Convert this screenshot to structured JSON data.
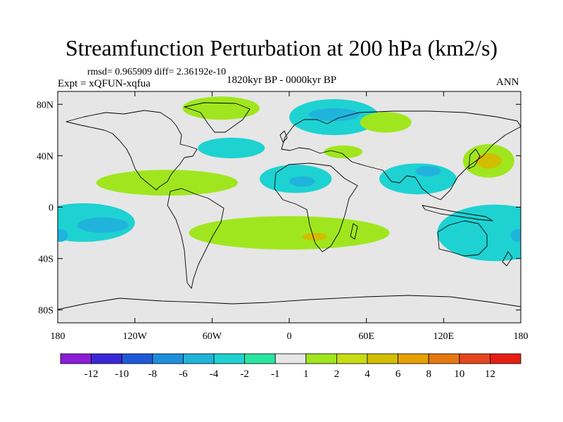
{
  "chart_data": {
    "type": "heatmap",
    "title": "Streamfunction Perturbation at 200 hPa (km2/s)",
    "stats_text": "rmsd= 0.965909 diff= 2.36192e-10",
    "subtitle_left": "Expt = xQFUN-xqfua",
    "subtitle_center": "1820kyr BP - 0000kyr BP",
    "subtitle_right": "ANN",
    "x_axis": {
      "range": [
        -180,
        180
      ],
      "ticks": [
        {
          "value": -180,
          "label": "180"
        },
        {
          "value": -120,
          "label": "120W"
        },
        {
          "value": -60,
          "label": "60W"
        },
        {
          "value": 0,
          "label": "0"
        },
        {
          "value": 60,
          "label": "60E"
        },
        {
          "value": 120,
          "label": "120E"
        },
        {
          "value": 180,
          "label": "180"
        }
      ]
    },
    "y_axis": {
      "range": [
        -90,
        90
      ],
      "ticks": [
        {
          "value": 80,
          "label": "80N"
        },
        {
          "value": 40,
          "label": "40N"
        },
        {
          "value": 0,
          "label": "0"
        },
        {
          "value": -40,
          "label": "40S"
        },
        {
          "value": -80,
          "label": "80S"
        }
      ]
    },
    "colorbar": {
      "colors": [
        "#8b1ed8",
        "#3a28d8",
        "#1e5ad8",
        "#1e8fdc",
        "#20b4dc",
        "#1ed2d2",
        "#28e6a0",
        "#e6e6e6",
        "#a0e61e",
        "#c8dc14",
        "#d2be00",
        "#e6a000",
        "#e67814",
        "#e6461e",
        "#e61e14"
      ],
      "labels": [
        "-12",
        "-10",
        "-8",
        "-6",
        "-4",
        "-2",
        "-1",
        "1",
        "2",
        "4",
        "6",
        "8",
        "10",
        "12"
      ]
    },
    "regions": [
      {
        "lon": 5,
        "lat": 22,
        "rlon": 28,
        "rlat": 11,
        "level": -2
      },
      {
        "lon": 10,
        "lat": 20,
        "rlon": 10,
        "rlat": 4,
        "level": -4
      },
      {
        "lon": 35,
        "lat": 70,
        "rlon": 35,
        "rlat": 14,
        "level": -2
      },
      {
        "lon": 35,
        "lat": 72,
        "rlon": 20,
        "rlat": 5,
        "level": -4
      },
      {
        "lon": -45,
        "lat": 46,
        "rlon": 26,
        "rlat": 8,
        "level": -2
      },
      {
        "lon": -160,
        "lat": -12,
        "rlon": 40,
        "rlat": 15,
        "level": -2
      },
      {
        "lon": -145,
        "lat": -14,
        "rlon": 20,
        "rlat": 6,
        "level": -4
      },
      {
        "lon": 100,
        "lat": 22,
        "rlon": 30,
        "rlat": 12,
        "level": -2
      },
      {
        "lon": 108,
        "lat": 28,
        "rlon": 10,
        "rlat": 4,
        "level": -4
      },
      {
        "lon": 160,
        "lat": -20,
        "rlon": 45,
        "rlat": 22,
        "level": -2
      },
      {
        "lon": -178,
        "lat": -22,
        "rlon": 6,
        "rlat": 5,
        "level": -4
      },
      {
        "lon": 178,
        "lat": -22,
        "rlon": 6,
        "rlat": 5,
        "level": -4
      },
      {
        "lon": -95,
        "lat": 19,
        "rlon": 55,
        "rlat": 10,
        "level": 1
      },
      {
        "lon": 0,
        "lat": -20,
        "rlon": 78,
        "rlat": 13,
        "level": 1
      },
      {
        "lon": 20,
        "lat": -23,
        "rlon": 10,
        "rlat": 3,
        "level": 4
      },
      {
        "lon": -53,
        "lat": 77,
        "rlon": 30,
        "rlat": 9,
        "level": 1
      },
      {
        "lon": 42,
        "lat": 43,
        "rlon": 15,
        "rlat": 5,
        "level": 1
      },
      {
        "lon": 75,
        "lat": 66,
        "rlon": 20,
        "rlat": 8,
        "level": 1
      },
      {
        "lon": 155,
        "lat": 36,
        "rlon": 20,
        "rlat": 13,
        "level": 1
      },
      {
        "lon": 155,
        "lat": 36,
        "rlon": 10,
        "rlat": 6,
        "level": 4
      }
    ]
  }
}
